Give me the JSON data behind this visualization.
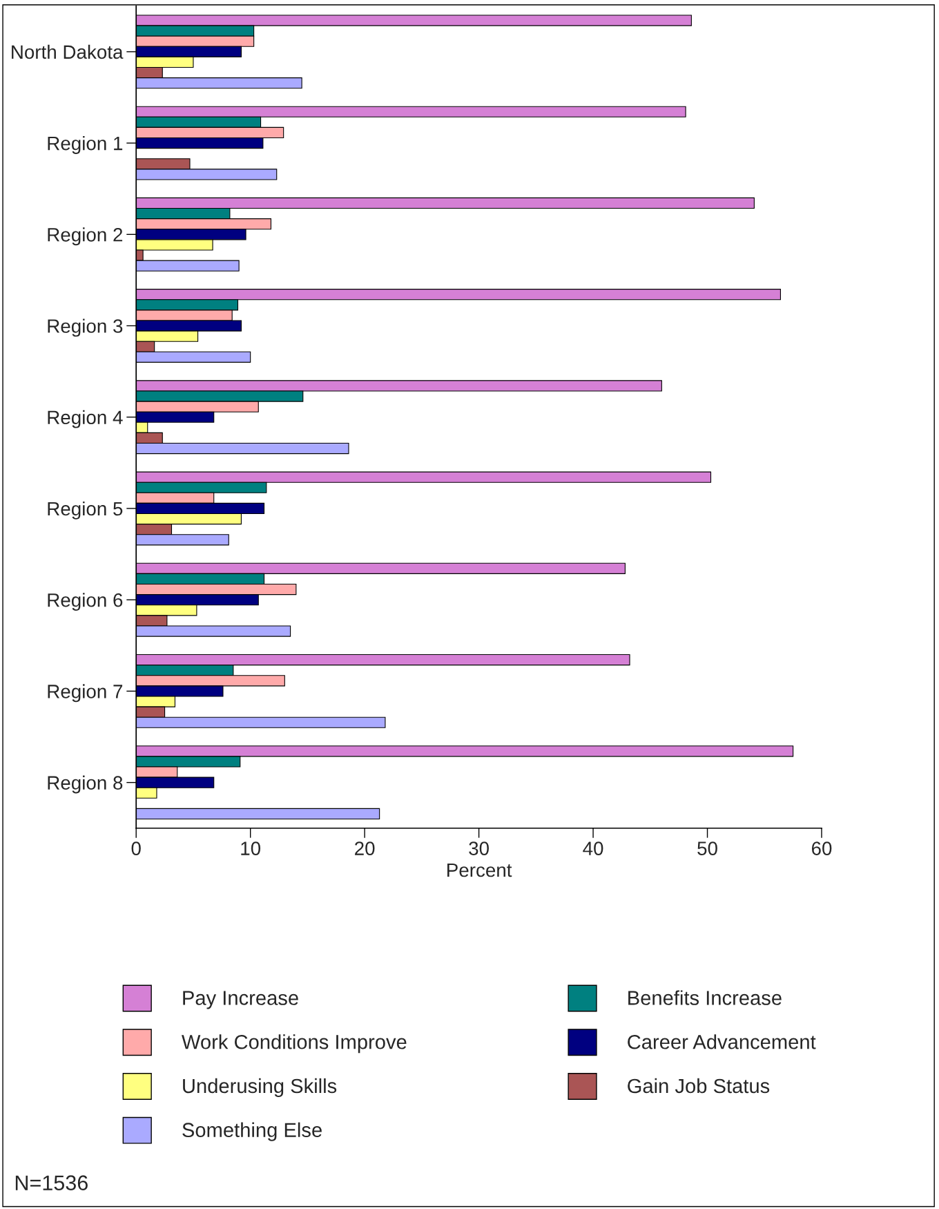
{
  "chart_data": {
    "type": "bar",
    "orientation": "horizontal",
    "xlabel": "Percent",
    "categories": [
      "North Dakota",
      "Region 1",
      "Region 2",
      "Region 3",
      "Region 4",
      "Region 5",
      "Region 6",
      "Region 7",
      "Region 8"
    ],
    "series": [
      {
        "name": "Pay Increase",
        "color": "#d580d5",
        "values": [
          48.6,
          48.1,
          54.1,
          56.4,
          46.0,
          50.3,
          42.8,
          43.2,
          57.5
        ]
      },
      {
        "name": "Benefits Increase",
        "color": "#008080",
        "values": [
          10.3,
          10.9,
          8.2,
          8.9,
          14.6,
          11.4,
          11.2,
          8.5,
          9.1
        ]
      },
      {
        "name": "Work Conditions Improve",
        "color": "#ffaaaa",
        "values": [
          10.3,
          12.9,
          11.8,
          8.4,
          10.7,
          6.8,
          14.0,
          13.0,
          3.6
        ]
      },
      {
        "name": "Career Advancement",
        "color": "#000080",
        "values": [
          9.2,
          11.1,
          9.6,
          9.2,
          6.8,
          11.2,
          10.7,
          7.6,
          6.8
        ]
      },
      {
        "name": "Underusing Skills",
        "color": "#ffff80",
        "values": [
          5.0,
          null,
          6.7,
          5.4,
          1.0,
          9.2,
          5.3,
          3.4,
          1.8
        ]
      },
      {
        "name": "Gain Job Status",
        "color": "#aa5555",
        "values": [
          2.3,
          4.7,
          0.6,
          1.6,
          2.3,
          3.1,
          2.7,
          2.5,
          null
        ]
      },
      {
        "name": "Something Else",
        "color": "#aaaaff",
        "values": [
          14.5,
          12.3,
          9.0,
          10.0,
          18.6,
          8.1,
          13.5,
          21.8,
          21.3
        ]
      }
    ],
    "xlim": [
      0,
      60
    ],
    "xticks": [
      0,
      10,
      20,
      30,
      40,
      50,
      60
    ],
    "grid": false,
    "legend": "bottom",
    "annotations": [
      "N=1536"
    ]
  }
}
